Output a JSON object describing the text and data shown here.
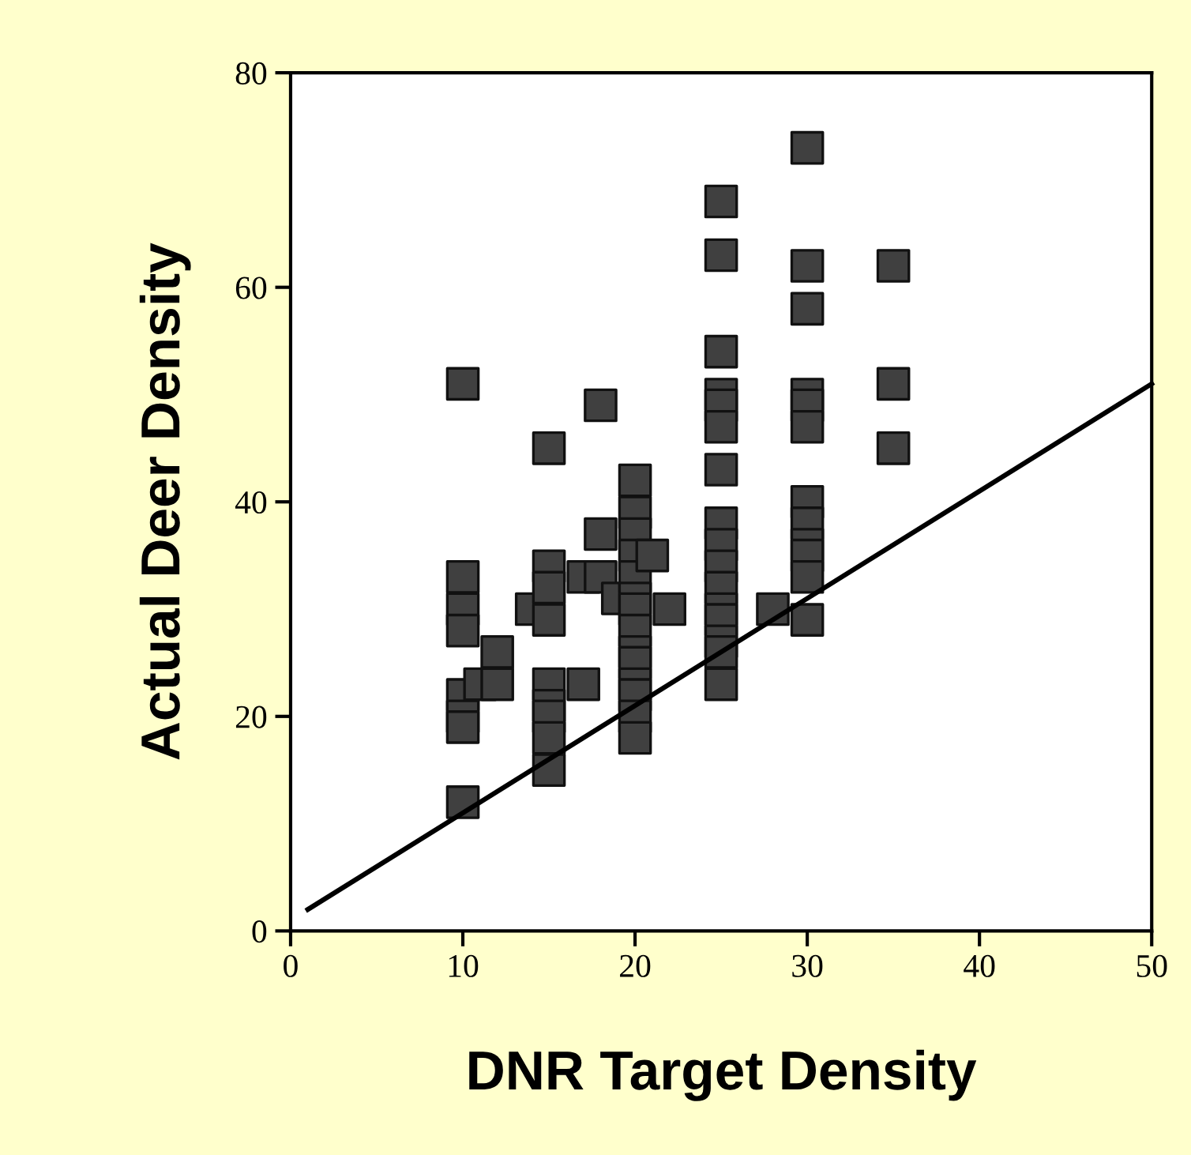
{
  "chart_data": {
    "type": "scatter",
    "xlabel": "DNR Target Density",
    "ylabel": "Actual Deer Density",
    "xlim": [
      0,
      50
    ],
    "ylim": [
      0,
      80
    ],
    "xticks": [
      0,
      10,
      20,
      30,
      40,
      50
    ],
    "yticks": [
      0,
      20,
      40,
      60,
      80
    ],
    "grid": false,
    "series": [
      {
        "color": "#404040",
        "marker": "square",
        "x": [
          10,
          10,
          10,
          10,
          10,
          10,
          10,
          10,
          11,
          12,
          12,
          14,
          15,
          15,
          15,
          15,
          15,
          15,
          15,
          15,
          15,
          17,
          17,
          18,
          18,
          18,
          19,
          20,
          20,
          20,
          20,
          20,
          20,
          20,
          20,
          20,
          20,
          20,
          20,
          20,
          20,
          21,
          22,
          25,
          25,
          25,
          25,
          25,
          25,
          25,
          25,
          25,
          25,
          25,
          25,
          25,
          25,
          25,
          25,
          28,
          30,
          30,
          30,
          30,
          30,
          30,
          30,
          30,
          30,
          30,
          30,
          30,
          35,
          35,
          35
        ],
        "values": [
          51,
          33,
          30,
          28,
          22,
          20,
          19,
          12,
          23,
          26,
          23,
          30,
          45,
          34,
          32,
          29,
          23,
          21,
          20,
          18,
          15,
          33,
          23,
          49,
          37,
          33,
          31,
          42,
          39,
          37,
          35,
          33,
          31,
          30,
          28,
          26,
          25,
          23,
          22,
          20,
          18,
          35,
          30,
          68,
          63,
          54,
          50,
          49,
          47,
          43,
          38,
          36,
          34,
          32,
          30,
          29,
          27,
          26,
          23,
          30,
          73,
          62,
          58,
          50,
          49,
          47,
          40,
          38,
          36,
          35,
          33,
          29,
          62,
          51,
          45
        ]
      },
      {
        "type": "line",
        "color": "#000000",
        "marker": "none",
        "line_style": "solid",
        "x": [
          1,
          50
        ],
        "values": [
          2,
          51
        ]
      }
    ]
  }
}
